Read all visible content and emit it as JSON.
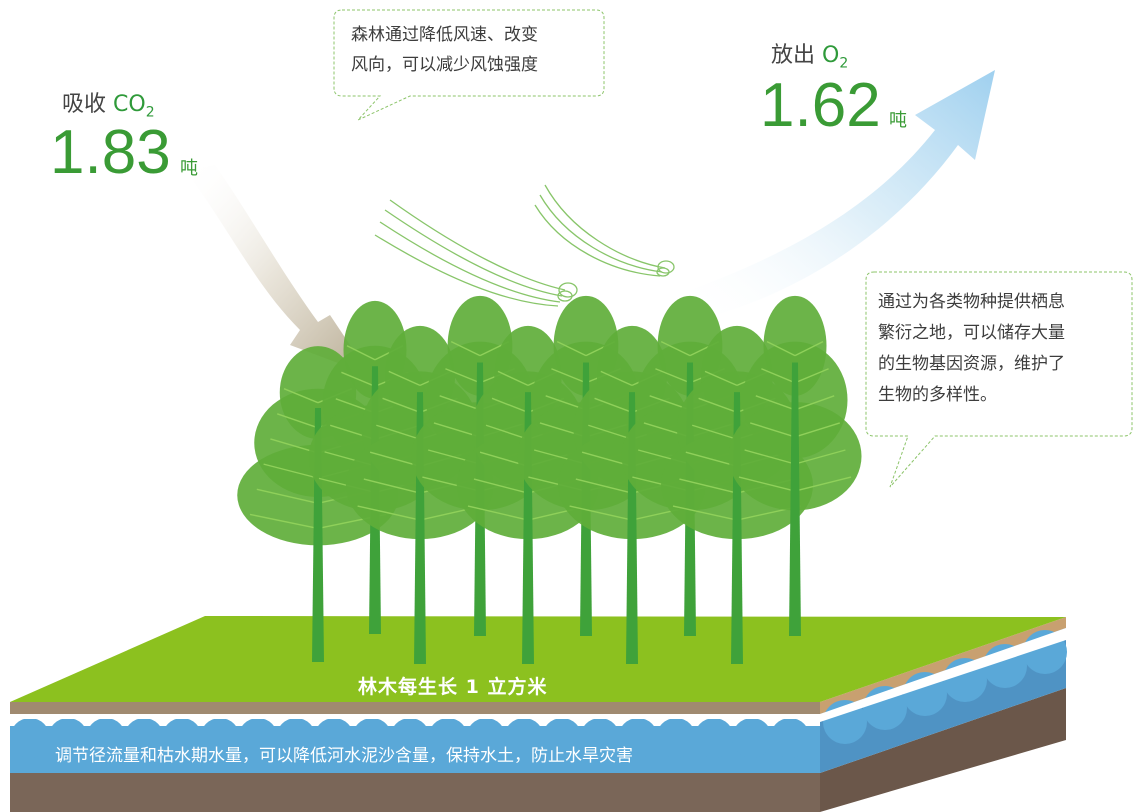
{
  "co2": {
    "label": "吸收",
    "formula": "CO",
    "subscript": "2",
    "value": "1.83",
    "unit": "吨"
  },
  "o2": {
    "label": "放出",
    "formula": "O",
    "subscript": "2",
    "value": "1.62",
    "unit": "吨"
  },
  "wind_note": {
    "line1": "森林通过降低风速、改变",
    "line2": "风向，可以减少风蚀强度"
  },
  "habitat_note": {
    "line1": "通过为各类物种提供栖息",
    "line2": "繁衍之地，可以储存大量",
    "line3": "的生物基因资源，维护了",
    "line4": "生物的多样性。"
  },
  "ground_label": "林木每生长 1 立方米",
  "water_note": "调节径流量和枯水期水量，可以降低河水泥沙含量，保持水土，防止水旱灾害",
  "colors": {
    "grass": "#8cc11f",
    "soil": "#a08a70",
    "water": "#5aa8d8",
    "deep_soil": "#7a6658",
    "accent_green": "#3a9b35",
    "tree": "#5fae3a"
  }
}
